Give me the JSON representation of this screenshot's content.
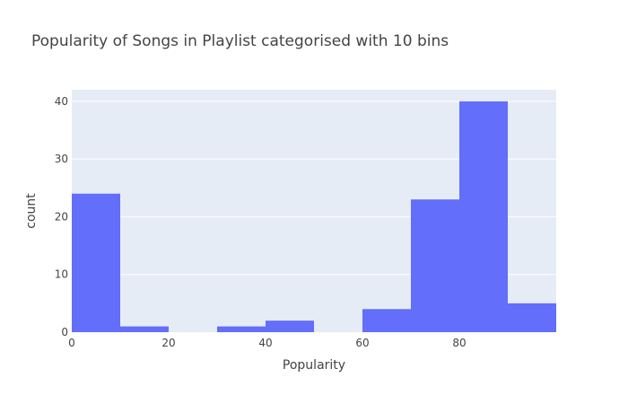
{
  "chart_data": {
    "type": "bar",
    "title": "Popularity of Songs in Playlist categorised with 10 bins",
    "xlabel": "Popularity",
    "ylabel": "count",
    "bins": [
      {
        "start": 0,
        "end": 10,
        "count": 24
      },
      {
        "start": 10,
        "end": 20,
        "count": 1
      },
      {
        "start": 20,
        "end": 30,
        "count": 0
      },
      {
        "start": 30,
        "end": 40,
        "count": 1
      },
      {
        "start": 40,
        "end": 50,
        "count": 2
      },
      {
        "start": 50,
        "end": 60,
        "count": 0
      },
      {
        "start": 60,
        "end": 70,
        "count": 4
      },
      {
        "start": 70,
        "end": 80,
        "count": 23
      },
      {
        "start": 80,
        "end": 90,
        "count": 40
      },
      {
        "start": 90,
        "end": 100,
        "count": 5
      }
    ],
    "xlim": [
      0,
      100
    ],
    "ylim": [
      0,
      42
    ],
    "xticks": [
      0,
      20,
      40,
      60,
      80
    ],
    "yticks": [
      0,
      10,
      20,
      30,
      40
    ],
    "grid": true,
    "legend": "none",
    "colors": {
      "bar": "#636efa",
      "plot_background": "#e5ecf6",
      "gridline": "#ffffff",
      "text": "#444444"
    }
  }
}
